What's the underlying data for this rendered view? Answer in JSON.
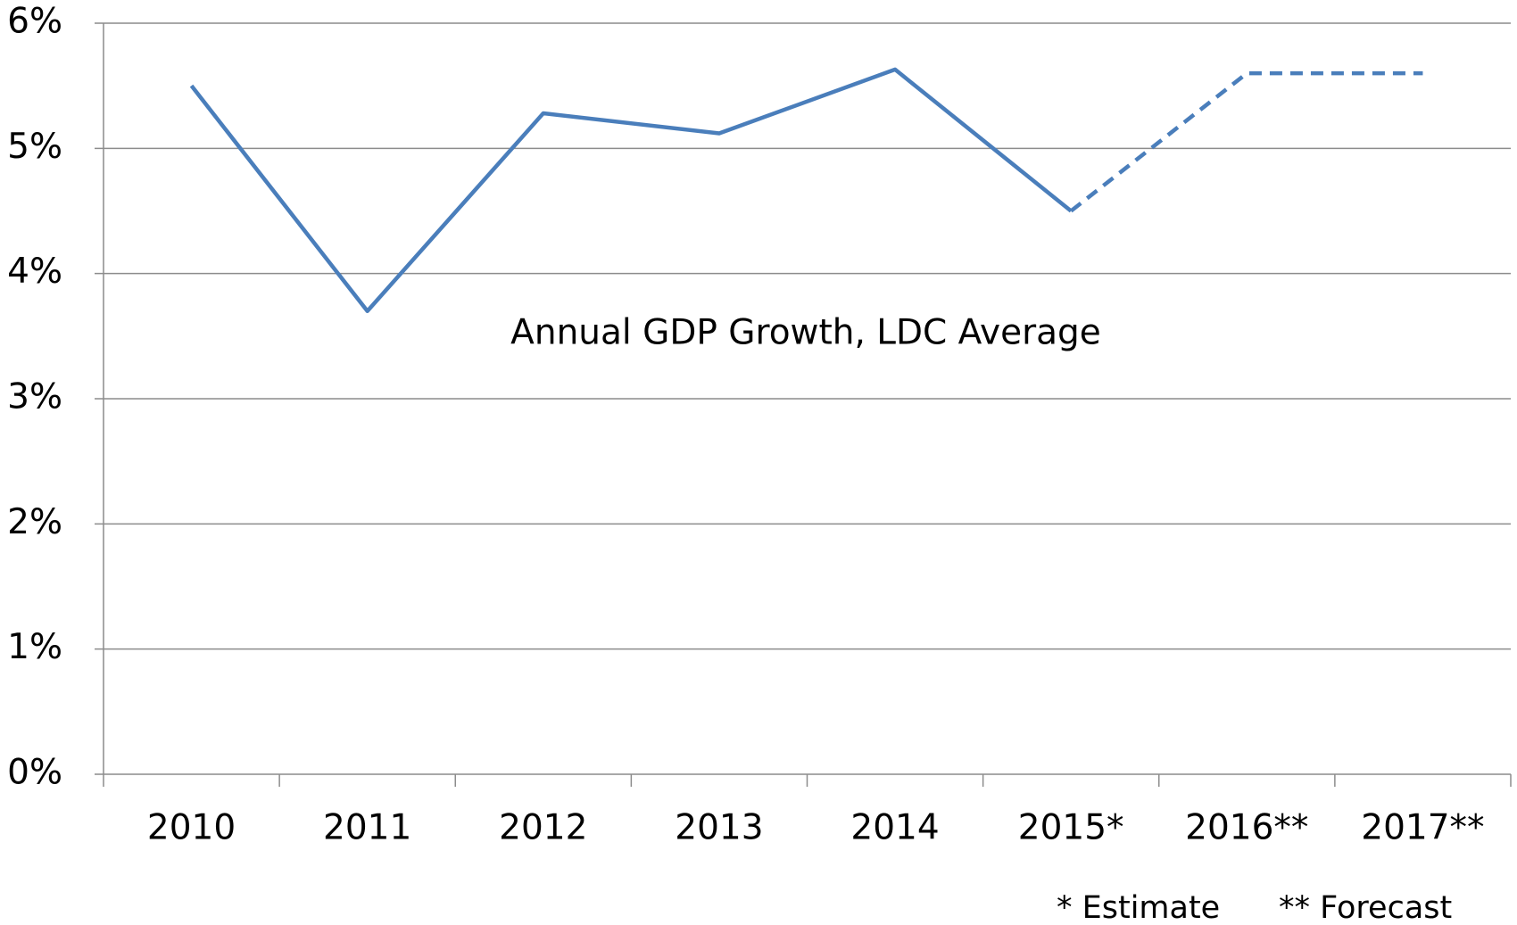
{
  "chart_data": {
    "type": "line",
    "annotation": "Annual GDP Growth, LDC Average",
    "footnotes": [
      "* Estimate",
      "** Forecast"
    ],
    "categories": [
      "2010",
      "2011",
      "2012",
      "2013",
      "2014",
      "2015*",
      "2016**",
      "2017**"
    ],
    "series": [
      {
        "color": "#4a7ebb",
        "dashed": false,
        "values": [
          5.5,
          3.7,
          5.28,
          5.12,
          5.63,
          4.5,
          null,
          null
        ]
      },
      {
        "color": "#4a7ebb",
        "dashed": true,
        "values": [
          null,
          null,
          null,
          null,
          null,
          4.5,
          5.6,
          5.6
        ]
      }
    ],
    "ylim": [
      0,
      6
    ],
    "yticks": [
      {
        "value": 0,
        "label": "0%"
      },
      {
        "value": 1,
        "label": "1%"
      },
      {
        "value": 2,
        "label": "2%"
      },
      {
        "value": 3,
        "label": "3%"
      },
      {
        "value": 4,
        "label": "4%"
      },
      {
        "value": 5,
        "label": "5%"
      },
      {
        "value": 6,
        "label": "6%"
      }
    ],
    "grid": true
  }
}
